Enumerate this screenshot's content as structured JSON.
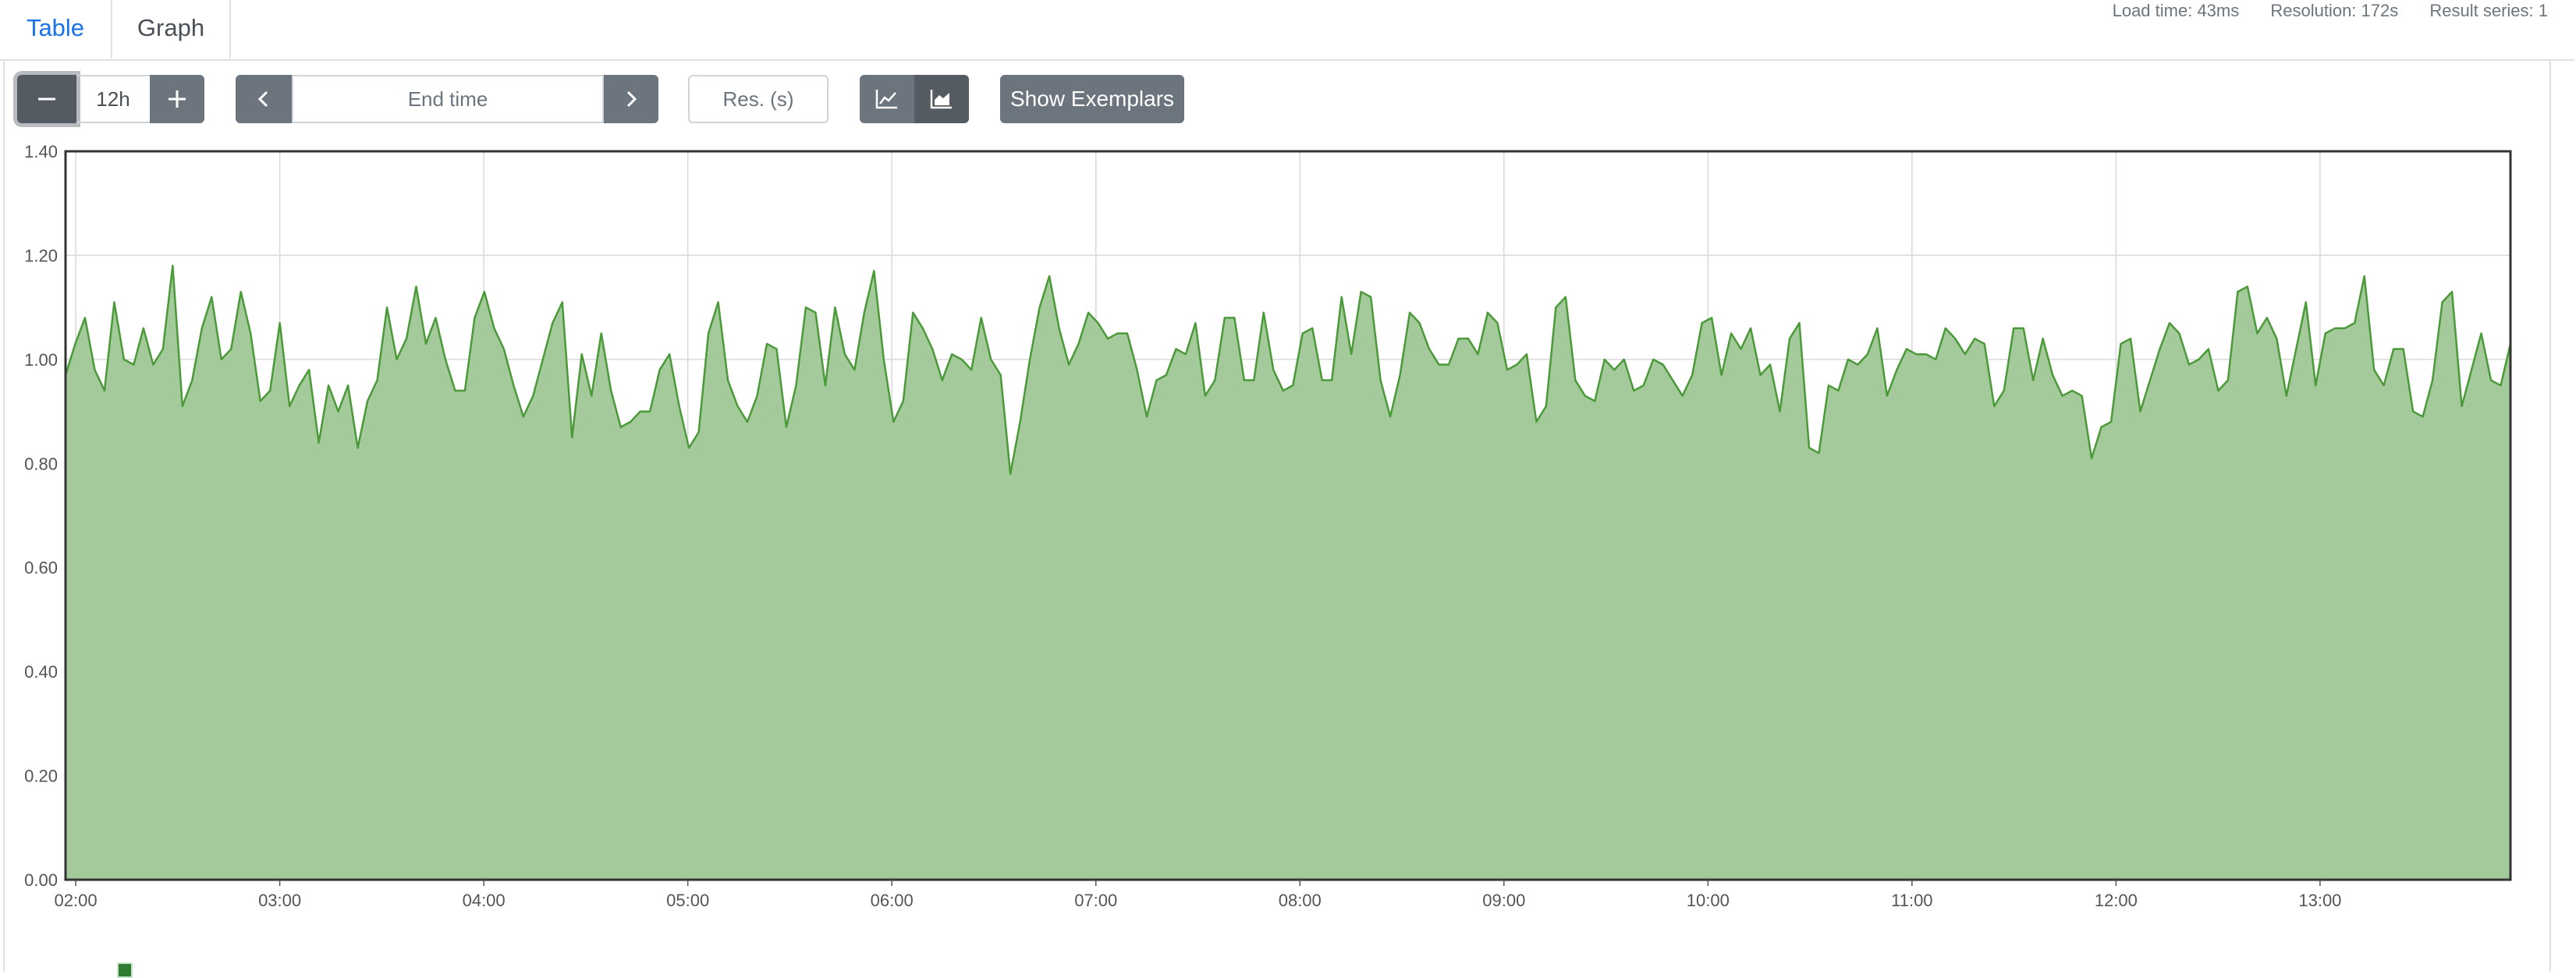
{
  "tabs": [
    {
      "label": "Table"
    },
    {
      "label": "Graph"
    }
  ],
  "stats": {
    "load_time": "Load time: 43ms",
    "resolution": "Resolution: 172s",
    "result_series": "Result series: 1"
  },
  "toolbar": {
    "range_value": "12h",
    "end_time_placeholder": "End time",
    "resolution_placeholder": "Res. (s)",
    "show_exemplars_label": "Show Exemplars",
    "minus_icon": "minus-icon",
    "plus_icon": "plus-icon",
    "prev_icon": "chevron-left-icon",
    "next_icon": "chevron-right-icon",
    "line_icon": "line-chart-icon",
    "stacked_icon": "area-chart-icon"
  },
  "chart_data": {
    "type": "area",
    "x_ticks": [
      "02:00",
      "03:00",
      "04:00",
      "05:00",
      "06:00",
      "07:00",
      "08:00",
      "09:00",
      "10:00",
      "11:00",
      "12:00",
      "13:00"
    ],
    "y_ticks": [
      "0.00",
      "0.20",
      "0.40",
      "0.60",
      "0.80",
      "1.00",
      "1.20",
      "1.40"
    ],
    "ylim": [
      0,
      1.4
    ],
    "xlim": [
      "01:57",
      "13:56"
    ],
    "grid": true,
    "color": "#4b9a3a",
    "fill": "#a4c99a",
    "series": [
      {
        "values": [
          0.97,
          1.03,
          1.08,
          0.98,
          0.94,
          1.11,
          1.0,
          0.99,
          1.06,
          0.99,
          1.02,
          1.18,
          0.91,
          0.96,
          1.06,
          1.12,
          1.0,
          1.02,
          1.13,
          1.05,
          0.92,
          0.94,
          1.07,
          0.91,
          0.95,
          0.98,
          0.84,
          0.95,
          0.9,
          0.95,
          0.83,
          0.92,
          0.96,
          1.1,
          1.0,
          1.04,
          1.14,
          1.03,
          1.08,
          1.0,
          0.94,
          0.94,
          1.08,
          1.13,
          1.06,
          1.02,
          0.95,
          0.89,
          0.93,
          1.0,
          1.07,
          1.11,
          0.85,
          1.01,
          0.93,
          1.05,
          0.94,
          0.87,
          0.88,
          0.9,
          0.9,
          0.98,
          1.01,
          0.91,
          0.83,
          0.86,
          1.05,
          1.11,
          0.96,
          0.91,
          0.88,
          0.93,
          1.03,
          1.02,
          0.87,
          0.95,
          1.1,
          1.09,
          0.95,
          1.1,
          1.01,
          0.98,
          1.09,
          1.17,
          1.0,
          0.88,
          0.92,
          1.09,
          1.06,
          1.02,
          0.96,
          1.01,
          1.0,
          0.98,
          1.08,
          1.0,
          0.97,
          0.78,
          0.88,
          1.0,
          1.1,
          1.16,
          1.06,
          0.99,
          1.03,
          1.09,
          1.07,
          1.04,
          1.05,
          1.05,
          0.98,
          0.89,
          0.96,
          0.97,
          1.02,
          1.01,
          1.07,
          0.93,
          0.96,
          1.08,
          1.08,
          0.96,
          0.96,
          1.09,
          0.98,
          0.94,
          0.95,
          1.05,
          1.06,
          0.96,
          0.96,
          1.12,
          1.01,
          1.13,
          1.12,
          0.96,
          0.89,
          0.97,
          1.09,
          1.07,
          1.02,
          0.99,
          0.99,
          1.04,
          1.04,
          1.01,
          1.09,
          1.07,
          0.98,
          0.99,
          1.01,
          0.88,
          0.91,
          1.1,
          1.12,
          0.96,
          0.93,
          0.92,
          1.0,
          0.98,
          1.0,
          0.94,
          0.95,
          1.0,
          0.99,
          0.96,
          0.93,
          0.97,
          1.07,
          1.08,
          0.97,
          1.05,
          1.02,
          1.06,
          0.97,
          0.99,
          0.9,
          1.04,
          1.07,
          0.83,
          0.82,
          0.95,
          0.94,
          1.0,
          0.99,
          1.01,
          1.06,
          0.93,
          0.98,
          1.02,
          1.01,
          1.01,
          1.0,
          1.06,
          1.04,
          1.01,
          1.04,
          1.03,
          0.91,
          0.94,
          1.06,
          1.06,
          0.96,
          1.04,
          0.97,
          0.93,
          0.94,
          0.93,
          0.81,
          0.87,
          0.88,
          1.03,
          1.04,
          0.9,
          0.96,
          1.02,
          1.07,
          1.05,
          0.99,
          1.0,
          1.02,
          0.94,
          0.96,
          1.13,
          1.14,
          1.05,
          1.08,
          1.04,
          0.93,
          1.02,
          1.11,
          0.95,
          1.05,
          1.06,
          1.06,
          1.07,
          1.16,
          0.98,
          0.95,
          1.02,
          1.02,
          0.9,
          0.89,
          0.96,
          1.11,
          1.13,
          0.91,
          0.98,
          1.05,
          0.96,
          0.95,
          1.03
        ]
      }
    ]
  }
}
